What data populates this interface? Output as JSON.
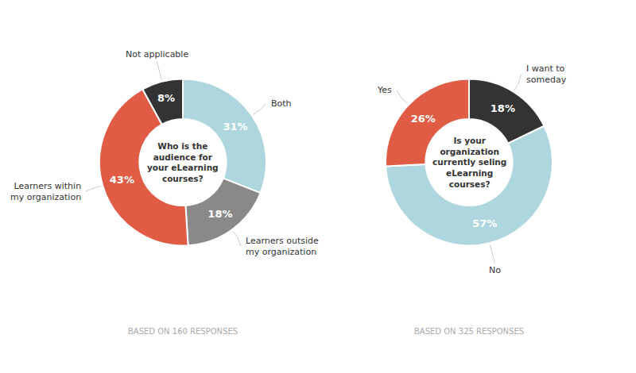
{
  "chart_data": [
    {
      "type": "donut",
      "title": "Who is the\naudience for\nyour eLearning\ncourses?",
      "categories": [
        "Both",
        "Learners outside\nmy organization",
        "Learners within\nmy organization",
        "Not applicable"
      ],
      "values": [
        31,
        18,
        43,
        8
      ],
      "value_labels": [
        "31%",
        "18%",
        "43%",
        "8%"
      ],
      "colors": [
        "#aed6df",
        "#898989",
        "#e05c45",
        "#333333"
      ],
      "data_labels": true,
      "annotations": [
        "BASED ON 160 RESPONSES"
      ]
    },
    {
      "type": "donut",
      "title": "Is your\norganization\ncurrently seling\neLearning\ncourses?",
      "categories": [
        "I want to\nsomeday",
        "No",
        "Yes"
      ],
      "values": [
        18,
        57,
        26
      ],
      "value_labels": [
        "18%",
        "57%",
        "26%"
      ],
      "colors": [
        "#333333",
        "#aed6df",
        "#e05c45"
      ],
      "data_labels": true,
      "annotations": [
        "BASED ON 325 RESPONSES"
      ]
    }
  ]
}
